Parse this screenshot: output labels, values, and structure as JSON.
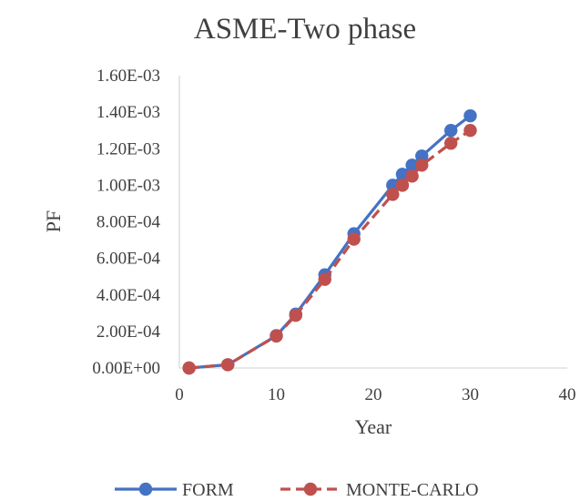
{
  "chart_data": {
    "type": "line",
    "title": "ASME-Two phase",
    "xlabel": "Year",
    "ylabel": "PF",
    "xlim": [
      0,
      40
    ],
    "ylim": [
      0,
      0.0016
    ],
    "xticks": [
      "0",
      "10",
      "20",
      "30",
      "40"
    ],
    "yticks": [
      "0.00E+00",
      "2.00E-04",
      "4.00E-04",
      "6.00E-04",
      "8.00E-04",
      "1.00E-03",
      "1.20E-03",
      "1.40E-03",
      "1.60E-03"
    ],
    "grid": false,
    "legend_position": "bottom",
    "series": [
      {
        "name": "FORM",
        "color": "#4472C4",
        "line_style": "solid",
        "x": [
          1,
          5,
          10,
          12,
          15,
          18,
          22,
          23,
          24,
          25,
          28,
          30
        ],
        "y": [
          0,
          1.8e-05,
          0.000177,
          0.000295,
          0.00051,
          0.000735,
          0.001,
          0.00106,
          0.00111,
          0.00116,
          0.0013,
          0.00138
        ]
      },
      {
        "name": "MONTE-CARLO",
        "color": "#C0504D",
        "line_style": "dashed",
        "x": [
          1,
          5,
          10,
          12,
          15,
          18,
          22,
          23,
          24,
          25,
          28,
          30
        ],
        "y": [
          0,
          1.8e-05,
          0.000175,
          0.000288,
          0.000485,
          0.000705,
          0.00095,
          0.001,
          0.00105,
          0.00111,
          0.00123,
          0.0013
        ]
      }
    ]
  }
}
